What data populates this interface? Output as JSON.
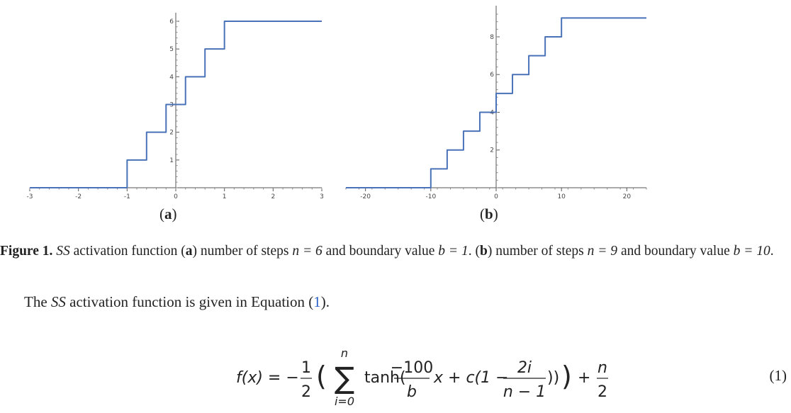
{
  "chart_data": [
    {
      "type": "line",
      "panel_label": "a",
      "xlim": [
        -3,
        3
      ],
      "ylim": [
        0,
        6
      ],
      "x_ticks": [
        -3,
        -2,
        -1,
        0,
        1,
        2,
        3
      ],
      "y_ticks": [
        1,
        2,
        3,
        4,
        5,
        6
      ],
      "steps": 6,
      "boundary": 1,
      "series": [
        {
          "color": "#4a72b8",
          "x": [
            -3,
            -1,
            -1,
            -0.6,
            -0.6,
            -0.2,
            -0.2,
            0.2,
            0.2,
            0.6,
            0.6,
            1,
            1,
            3
          ],
          "y": [
            0,
            0,
            1,
            1,
            2,
            2,
            3,
            3,
            4,
            4,
            5,
            5,
            6,
            6
          ]
        }
      ]
    },
    {
      "type": "line",
      "panel_label": "b",
      "xlim": [
        -23,
        23
      ],
      "ylim": [
        0,
        9.2
      ],
      "x_ticks": [
        -20,
        -10,
        0,
        10,
        20
      ],
      "y_ticks": [
        2,
        4,
        6,
        8
      ],
      "steps": 9,
      "boundary": 10,
      "series": [
        {
          "color": "#4a72b8",
          "x": [
            -23,
            -10,
            -10,
            -7.5,
            -7.5,
            -5,
            -5,
            -2.5,
            -2.5,
            0,
            0,
            2.5,
            2.5,
            5,
            5,
            7.5,
            7.5,
            10,
            10,
            23
          ],
          "y": [
            0,
            0,
            1,
            1,
            2,
            2,
            3,
            3,
            4,
            4,
            5,
            5,
            6,
            6,
            7,
            7,
            8,
            8,
            9,
            9
          ]
        }
      ]
    }
  ],
  "figure": {
    "label_a": "a",
    "label_b": "b",
    "caption_prefix": "Figure 1.",
    "caption_ss": "SS",
    "caption_t1": " activation function (",
    "caption_t2": ") number of steps ",
    "caption_eq1": "n = 6",
    "caption_t3": " and boundary value ",
    "caption_eq2": "b = 1",
    "caption_t4": ". (",
    "caption_t5": ") number of steps ",
    "caption_eq3": "n = 9",
    "caption_t6": " and boundary value ",
    "caption_eq4": "b = 10",
    "caption_t7": "."
  },
  "paragraph": {
    "t1": "The ",
    "ss": "SS",
    "t2": " activation function is given in Equation (",
    "ref": "1",
    "t3": ")."
  },
  "equation": {
    "lhs": "f(x) = −",
    "half_num": "1",
    "half_den": "2",
    "sum_top": "n",
    "sum_bottom": "i=0",
    "body_a": "tanh(",
    "frac1_num": "−100",
    "frac1_den": "b",
    "body_b": "x + c(1 − ",
    "frac2_num": "2i",
    "frac2_den": "n − 1",
    "body_c": "))",
    "plus": "+",
    "frac3_num": "n",
    "frac3_den": "2",
    "number": "(1)"
  }
}
